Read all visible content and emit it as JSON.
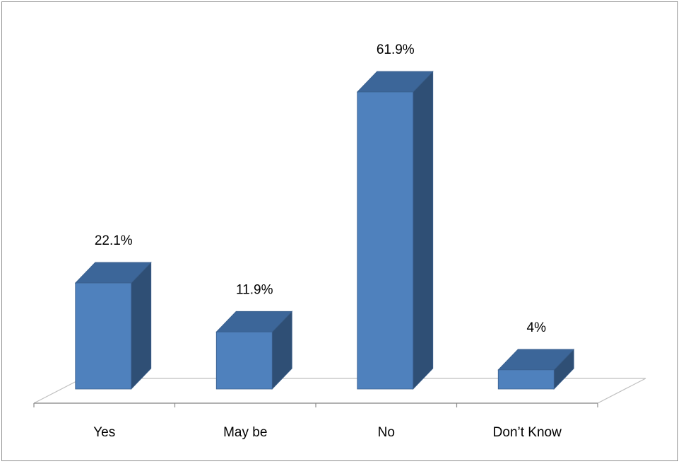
{
  "chart_data": {
    "type": "bar",
    "three_d": true,
    "categories": [
      "Yes",
      "May be",
      "No",
      "Don’t Know"
    ],
    "values": [
      22.1,
      11.9,
      61.9,
      4
    ],
    "data_labels": [
      "22.1%",
      "11.9%",
      "61.9%",
      "4%"
    ],
    "unit": "%",
    "title": "",
    "xlabel": "",
    "ylabel": "",
    "ylim": [
      0,
      70
    ],
    "grid": false,
    "legend": "none",
    "colors": {
      "bar_front": "#4f81bd",
      "bar_side": "#2f4f75",
      "bar_top": "#3c6699",
      "bar_edge": "#3a5f8c",
      "floor_line": "#bfbfbf",
      "axis_line": "#8c8c8c"
    }
  }
}
